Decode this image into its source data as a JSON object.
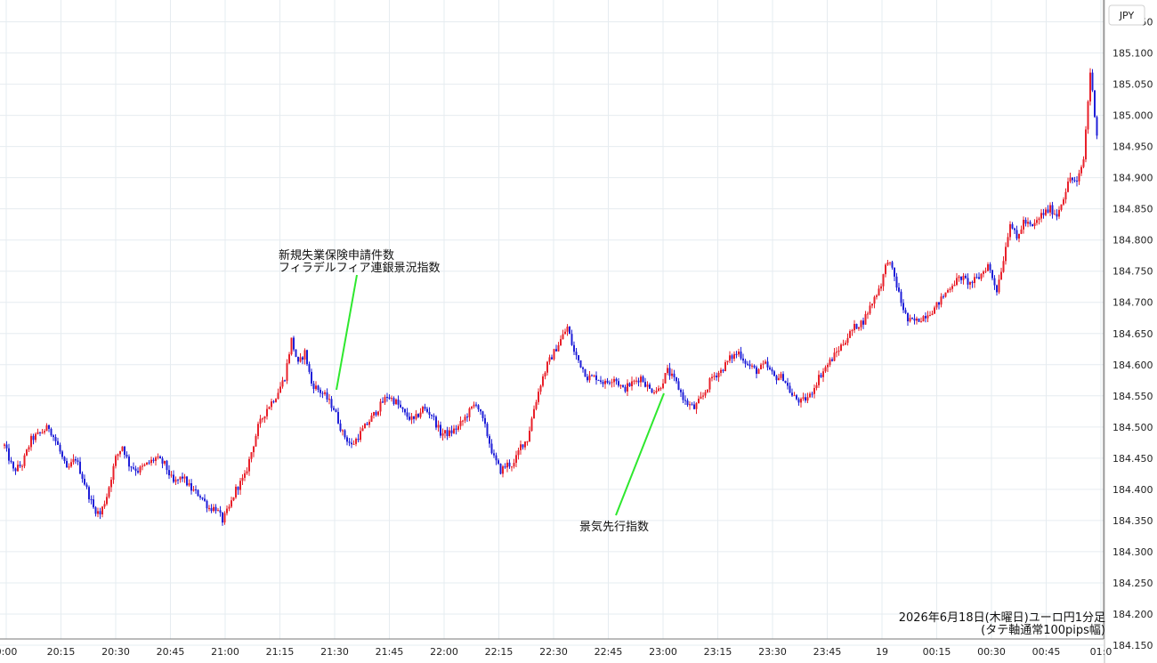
{
  "chart_data": {
    "type": "candlestick",
    "caption": [
      "2026年6月18日(木曜日)ユーロ円1分足",
      "(タテ軸通常100pips幅)"
    ],
    "y_axis_label": "JPY",
    "ylim": [
      184.16,
      185.185
    ],
    "y_ticks": [
      "185.150",
      "185.100",
      "185.050",
      "185.000",
      "184.950",
      "184.900",
      "184.850",
      "184.800",
      "184.750",
      "184.700",
      "184.650",
      "184.600",
      "184.550",
      "184.500",
      "184.450",
      "184.400",
      "184.350",
      "184.300",
      "184.250",
      "184.200",
      "184.150"
    ],
    "x_ticks": [
      "0:00",
      "20:15",
      "20:30",
      "20:45",
      "21:00",
      "21:15",
      "21:30",
      "21:45",
      "22:00",
      "22:15",
      "22:30",
      "22:45",
      "23:00",
      "23:15",
      "23:30",
      "23:45",
      "19",
      "00:15",
      "00:30",
      "00:45",
      "01:0"
    ],
    "series_points": [
      [
        0,
        184.47
      ],
      [
        4,
        184.43
      ],
      [
        8,
        184.44
      ],
      [
        12,
        184.48
      ],
      [
        16,
        184.49
      ],
      [
        20,
        184.5
      ],
      [
        24,
        184.47
      ],
      [
        28,
        184.43
      ],
      [
        32,
        184.45
      ],
      [
        36,
        184.41
      ],
      [
        40,
        184.37
      ],
      [
        43,
        184.36
      ],
      [
        46,
        184.39
      ],
      [
        50,
        184.45
      ],
      [
        53,
        184.47
      ],
      [
        56,
        184.44
      ],
      [
        60,
        184.43
      ],
      [
        64,
        184.44
      ],
      [
        68,
        184.45
      ],
      [
        72,
        184.44
      ],
      [
        76,
        184.41
      ],
      [
        80,
        184.42
      ],
      [
        84,
        184.4
      ],
      [
        88,
        184.39
      ],
      [
        92,
        184.37
      ],
      [
        95,
        184.37
      ],
      [
        98,
        184.35
      ],
      [
        101,
        184.37
      ],
      [
        104,
        184.4
      ],
      [
        108,
        184.42
      ],
      [
        111,
        184.46
      ],
      [
        114,
        184.5
      ],
      [
        118,
        184.53
      ],
      [
        122,
        184.55
      ],
      [
        126,
        184.58
      ],
      [
        129,
        184.64
      ],
      [
        132,
        184.6
      ],
      [
        135,
        184.62
      ],
      [
        138,
        184.57
      ],
      [
        141,
        184.56
      ],
      [
        144,
        184.55
      ],
      [
        148,
        184.53
      ],
      [
        152,
        184.49
      ],
      [
        156,
        184.47
      ],
      [
        160,
        184.49
      ],
      [
        164,
        184.51
      ],
      [
        168,
        184.53
      ],
      [
        172,
        184.55
      ],
      [
        176,
        184.54
      ],
      [
        180,
        184.52
      ],
      [
        184,
        184.51
      ],
      [
        188,
        184.53
      ],
      [
        192,
        184.52
      ],
      [
        196,
        184.49
      ],
      [
        200,
        184.49
      ],
      [
        204,
        184.5
      ],
      [
        208,
        184.52
      ],
      [
        212,
        184.54
      ],
      [
        216,
        184.5
      ],
      [
        220,
        184.45
      ],
      [
        223,
        184.43
      ],
      [
        226,
        184.44
      ],
      [
        229,
        184.44
      ],
      [
        232,
        184.47
      ],
      [
        235,
        184.48
      ],
      [
        238,
        184.53
      ],
      [
        241,
        184.57
      ],
      [
        244,
        184.6
      ],
      [
        247,
        184.62
      ],
      [
        250,
        184.64
      ],
      [
        253,
        184.66
      ],
      [
        256,
        184.62
      ],
      [
        259,
        184.6
      ],
      [
        262,
        184.58
      ],
      [
        266,
        184.58
      ],
      [
        270,
        184.57
      ],
      [
        274,
        184.58
      ],
      [
        278,
        184.56
      ],
      [
        282,
        184.57
      ],
      [
        286,
        184.58
      ],
      [
        290,
        184.56
      ],
      [
        294,
        184.56
      ],
      [
        298,
        184.59
      ],
      [
        302,
        184.57
      ],
      [
        306,
        184.54
      ],
      [
        310,
        184.53
      ],
      [
        314,
        184.55
      ],
      [
        318,
        184.58
      ],
      [
        322,
        184.59
      ],
      [
        326,
        184.61
      ],
      [
        330,
        184.62
      ],
      [
        334,
        184.6
      ],
      [
        338,
        184.59
      ],
      [
        342,
        184.6
      ],
      [
        346,
        184.58
      ],
      [
        350,
        184.58
      ],
      [
        354,
        184.55
      ],
      [
        358,
        184.54
      ],
      [
        362,
        184.55
      ],
      [
        366,
        184.58
      ],
      [
        370,
        184.6
      ],
      [
        374,
        184.62
      ],
      [
        378,
        184.64
      ],
      [
        382,
        184.66
      ],
      [
        386,
        184.67
      ],
      [
        390,
        184.7
      ],
      [
        394,
        184.73
      ],
      [
        397,
        184.77
      ],
      [
        400,
        184.74
      ],
      [
        403,
        184.7
      ],
      [
        406,
        184.67
      ],
      [
        410,
        184.67
      ],
      [
        414,
        184.68
      ],
      [
        418,
        184.69
      ],
      [
        422,
        184.71
      ],
      [
        426,
        184.73
      ],
      [
        430,
        184.74
      ],
      [
        434,
        184.73
      ],
      [
        438,
        184.74
      ],
      [
        442,
        184.76
      ],
      [
        446,
        184.72
      ],
      [
        449,
        184.77
      ],
      [
        452,
        184.83
      ],
      [
        455,
        184.8
      ],
      [
        458,
        184.83
      ],
      [
        462,
        184.82
      ],
      [
        466,
        184.84
      ],
      [
        470,
        184.85
      ],
      [
        473,
        184.84
      ],
      [
        476,
        184.87
      ],
      [
        479,
        184.9
      ],
      [
        482,
        184.89
      ],
      [
        485,
        184.93
      ],
      [
        488,
        185.07
      ],
      [
        491,
        184.97
      ]
    ]
  }
}
